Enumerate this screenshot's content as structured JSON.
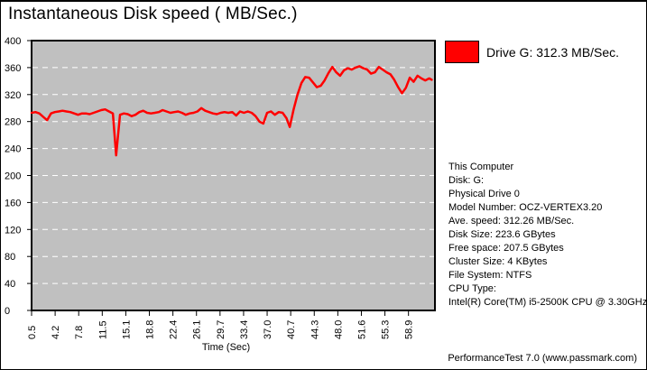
{
  "title": "Instantaneous Disk speed ( MB/Sec.)",
  "legend": {
    "label": "Drive G: 312.3 MB/Sec.",
    "swatch_color": "#ff0000"
  },
  "info_panel": {
    "lines": [
      "This Computer",
      "Disk: G:",
      "Physical Drive 0",
      "Model Number: OCZ-VERTEX3.20",
      "Ave. speed: 312.26 MB/Sec.",
      "Disk Size: 223.6 GBytes",
      "Free space: 207.5 GBytes",
      "Cluster Size: 4 KBytes",
      "File System: NTFS",
      "CPU Type:",
      "Intel(R) Core(TM) i5-2500K CPU @ 3.30GHz"
    ]
  },
  "footer": "PerformanceTest 7.0 (www.passmark.com)",
  "chart_data": {
    "type": "line",
    "title": "Instantaneous Disk speed ( MB/Sec.)",
    "xlabel": "Time (Sec)",
    "ylabel": "",
    "ylim": [
      0,
      400
    ],
    "xlim": [
      0.5,
      63.0
    ],
    "y_ticks": [
      0,
      40,
      80,
      120,
      160,
      200,
      240,
      280,
      320,
      360,
      400
    ],
    "x_tick_labels": [
      "0.5",
      "4.2",
      "7.8",
      "11.5",
      "15.1",
      "18.8",
      "22.4",
      "26.1",
      "29.7",
      "33.4",
      "37.0",
      "40.7",
      "44.3",
      "48.0",
      "51.6",
      "55.3",
      "58.9"
    ],
    "x_tick_times": [
      0.5,
      4.15,
      7.8,
      11.45,
      15.1,
      18.75,
      22.4,
      26.05,
      29.7,
      33.35,
      37.0,
      40.65,
      44.3,
      47.95,
      51.6,
      55.25,
      58.9
    ],
    "grid": "horizontal-white-dashed",
    "plot_bg": "#c0c0c0",
    "legend_position": "top-right",
    "series": [
      {
        "name": "Drive G",
        "color": "#ff0000",
        "points": [
          [
            0.5,
            293
          ],
          [
            1.1,
            294
          ],
          [
            1.7,
            292
          ],
          [
            2.3,
            287
          ],
          [
            2.9,
            282
          ],
          [
            3.5,
            292
          ],
          [
            4.1,
            294
          ],
          [
            4.7,
            295
          ],
          [
            5.3,
            296
          ],
          [
            5.9,
            295
          ],
          [
            6.5,
            294
          ],
          [
            7.1,
            292
          ],
          [
            7.7,
            290
          ],
          [
            8.3,
            292
          ],
          [
            8.9,
            292
          ],
          [
            9.5,
            291
          ],
          [
            10.1,
            293
          ],
          [
            10.7,
            295
          ],
          [
            11.3,
            297
          ],
          [
            11.9,
            298
          ],
          [
            12.5,
            295
          ],
          [
            13.1,
            292
          ],
          [
            13.6,
            230
          ],
          [
            14.2,
            290
          ],
          [
            14.8,
            292
          ],
          [
            15.4,
            291
          ],
          [
            16.0,
            288
          ],
          [
            16.6,
            290
          ],
          [
            17.2,
            294
          ],
          [
            17.8,
            296
          ],
          [
            18.4,
            293
          ],
          [
            19.0,
            292
          ],
          [
            19.6,
            293
          ],
          [
            20.2,
            294
          ],
          [
            20.8,
            297
          ],
          [
            21.4,
            295
          ],
          [
            22.0,
            293
          ],
          [
            22.6,
            294
          ],
          [
            23.2,
            295
          ],
          [
            23.8,
            293
          ],
          [
            24.4,
            290
          ],
          [
            25.0,
            292
          ],
          [
            25.6,
            293
          ],
          [
            26.2,
            295
          ],
          [
            26.8,
            300
          ],
          [
            27.4,
            296
          ],
          [
            28.0,
            294
          ],
          [
            28.6,
            292
          ],
          [
            29.2,
            291
          ],
          [
            29.8,
            293
          ],
          [
            30.4,
            294
          ],
          [
            31.0,
            293
          ],
          [
            31.6,
            294
          ],
          [
            32.2,
            289
          ],
          [
            32.8,
            295
          ],
          [
            33.4,
            293
          ],
          [
            34.0,
            295
          ],
          [
            34.6,
            293
          ],
          [
            35.2,
            288
          ],
          [
            35.8,
            280
          ],
          [
            36.4,
            277
          ],
          [
            37.0,
            293
          ],
          [
            37.6,
            295
          ],
          [
            38.2,
            290
          ],
          [
            38.8,
            294
          ],
          [
            39.4,
            293
          ],
          [
            40.0,
            285
          ],
          [
            40.5,
            272
          ],
          [
            41.1,
            298
          ],
          [
            41.7,
            320
          ],
          [
            42.3,
            337
          ],
          [
            42.9,
            346
          ],
          [
            43.5,
            345
          ],
          [
            44.1,
            338
          ],
          [
            44.7,
            331
          ],
          [
            45.3,
            333
          ],
          [
            45.9,
            341
          ],
          [
            46.5,
            352
          ],
          [
            47.1,
            361
          ],
          [
            47.7,
            353
          ],
          [
            48.3,
            348
          ],
          [
            48.9,
            356
          ],
          [
            49.5,
            359
          ],
          [
            50.1,
            357
          ],
          [
            50.7,
            360
          ],
          [
            51.3,
            362
          ],
          [
            51.9,
            359
          ],
          [
            52.5,
            357
          ],
          [
            53.1,
            351
          ],
          [
            53.7,
            353
          ],
          [
            54.3,
            361
          ],
          [
            54.9,
            357
          ],
          [
            55.5,
            353
          ],
          [
            56.1,
            350
          ],
          [
            56.7,
            342
          ],
          [
            57.3,
            331
          ],
          [
            57.9,
            322
          ],
          [
            58.5,
            330
          ],
          [
            59.1,
            345
          ],
          [
            59.7,
            339
          ],
          [
            60.3,
            348
          ],
          [
            60.9,
            344
          ],
          [
            61.5,
            341
          ],
          [
            62.1,
            344
          ],
          [
            62.5,
            342
          ]
        ]
      }
    ]
  }
}
